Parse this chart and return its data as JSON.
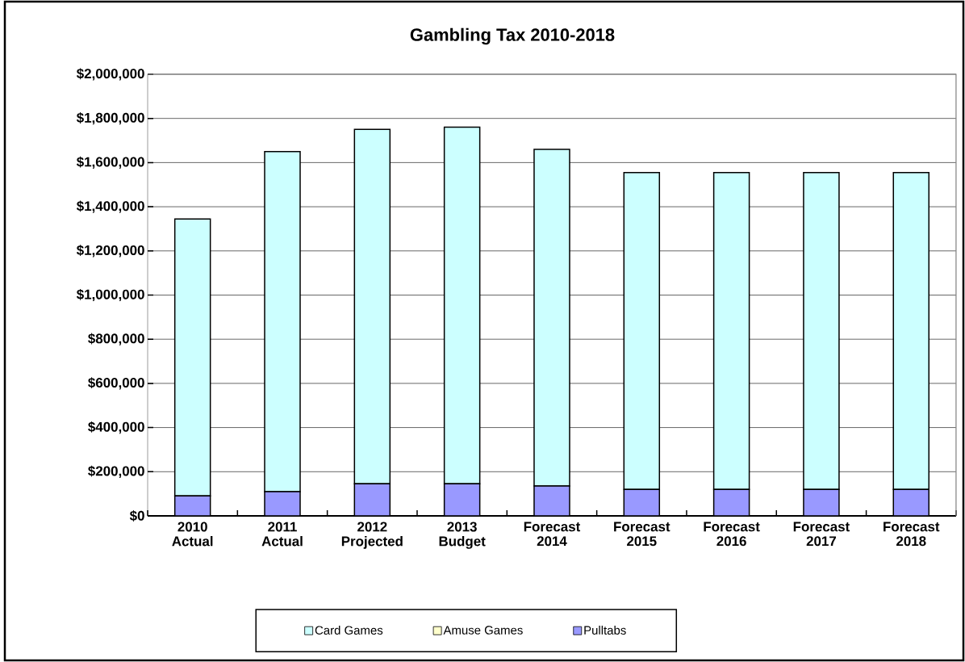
{
  "chart_data": {
    "type": "bar",
    "title": "Gambling Tax 2010-2018",
    "stacked": true,
    "categories": [
      "2010 Actual",
      "2011 Actual",
      "2012 Projected",
      "2013 Budget",
      "Forecast 2014",
      "Forecast 2015",
      "Forecast 2016",
      "Forecast 2017",
      "Forecast 2018"
    ],
    "series": [
      {
        "name": "Pulltabs",
        "color": "#9999ff",
        "values": [
          90000,
          110000,
          145000,
          145000,
          135000,
          120000,
          120000,
          120000,
          120000
        ]
      },
      {
        "name": "Amuse Games",
        "color": "#ffffcc",
        "values": [
          0,
          0,
          0,
          0,
          0,
          0,
          0,
          0,
          0
        ]
      },
      {
        "name": "Card Games",
        "color": "#ccffff",
        "values": [
          1255000,
          1540000,
          1605000,
          1615000,
          1525000,
          1435000,
          1435000,
          1435000,
          1435000
        ]
      }
    ],
    "ylim": [
      0,
      2000000
    ],
    "yticks": [
      {
        "value": 0,
        "label": "$0"
      },
      {
        "value": 200000,
        "label": "$200,000"
      },
      {
        "value": 400000,
        "label": "$400,000"
      },
      {
        "value": 600000,
        "label": "$600,000"
      },
      {
        "value": 800000,
        "label": "$800,000"
      },
      {
        "value": 1000000,
        "label": "$1,000,000"
      },
      {
        "value": 1200000,
        "label": "$1,200,000"
      },
      {
        "value": 1400000,
        "label": "$1,400,000"
      },
      {
        "value": 1600000,
        "label": "$1,600,000"
      },
      {
        "value": 1800000,
        "label": "$1,800,000"
      },
      {
        "value": 2000000,
        "label": "$2,000,000"
      }
    ],
    "grid": "y",
    "legend": "bottom"
  }
}
